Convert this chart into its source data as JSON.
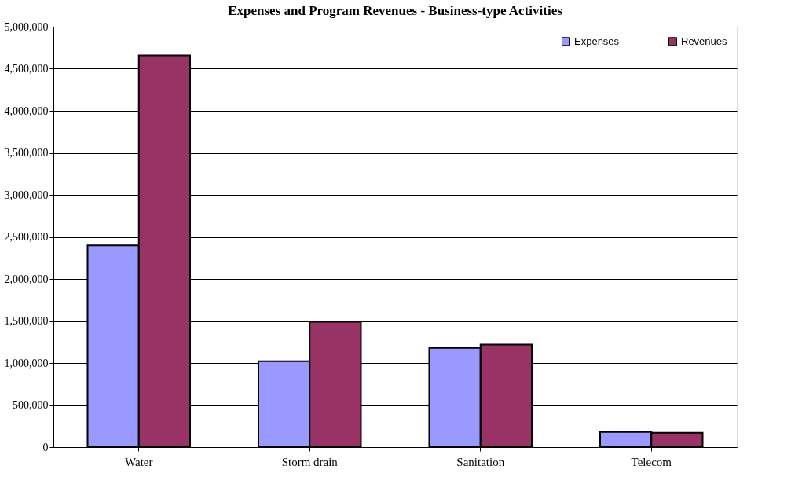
{
  "chart_data": {
    "type": "bar",
    "title": "Expenses and Program Revenues - Business-type Activities",
    "categories": [
      "Water",
      "Storm drain",
      "Sanitation",
      "Telecom"
    ],
    "series": [
      {
        "name": "Expenses",
        "color": "#9999ff",
        "values": [
          2400000,
          1020000,
          1180000,
          180000
        ]
      },
      {
        "name": "Revenues",
        "color": "#993366",
        "values": [
          4660000,
          1490000,
          1220000,
          170000
        ]
      }
    ],
    "ylim": [
      0,
      5000000
    ],
    "yticks": [
      0,
      {
        "value": 500000,
        "label": "500,000"
      },
      {
        "value": 1000000,
        "label": "1,000,000"
      },
      {
        "value": 1500000,
        "label": "1,500,000"
      },
      {
        "value": 2000000,
        "label": "2,000,000"
      },
      {
        "value": 2500000,
        "label": "2,500,000"
      },
      {
        "value": 3000000,
        "label": "3,000,000"
      },
      {
        "value": 3500000,
        "label": "3,500,000"
      },
      {
        "value": 4000000,
        "label": "4,000,000"
      },
      {
        "value": 4500000,
        "label": "4,500,000"
      },
      {
        "value": 5000000,
        "label": "5,000,000"
      }
    ],
    "grid": "y",
    "legend": "top right"
  }
}
